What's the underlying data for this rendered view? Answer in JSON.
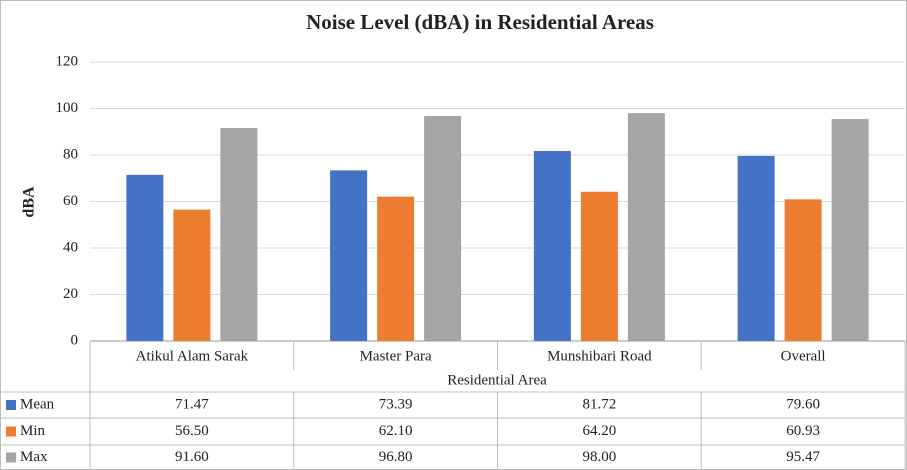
{
  "chart_data": {
    "type": "bar",
    "title": "Noise Level (dBA) in Residential Areas",
    "y_label": "dBA",
    "x_label": "Residential Area",
    "categories": [
      "Atikul Alam Sarak",
      "Master Para",
      "Munshibari Road",
      "Overall"
    ],
    "series": [
      {
        "name": "Mean",
        "color": "#4472c4",
        "values": [
          71.47,
          73.39,
          81.72,
          79.6
        ],
        "value_labels": [
          "71.47",
          "73.39",
          "81.72",
          "79.60"
        ]
      },
      {
        "name": "Min",
        "color": "#ed7d31",
        "values": [
          56.5,
          62.1,
          64.2,
          60.93
        ],
        "value_labels": [
          "56.50",
          "62.10",
          "64.20",
          "60.93"
        ]
      },
      {
        "name": "Max",
        "color": "#a5a5a5",
        "values": [
          91.6,
          96.8,
          98.0,
          95.47
        ],
        "value_labels": [
          "91.60",
          "96.80",
          "98.00",
          "95.47"
        ]
      }
    ],
    "ylim": [
      0,
      120
    ],
    "yticks": [
      0,
      20,
      40,
      60,
      80,
      100,
      120
    ],
    "grid": true,
    "data_table": true
  }
}
